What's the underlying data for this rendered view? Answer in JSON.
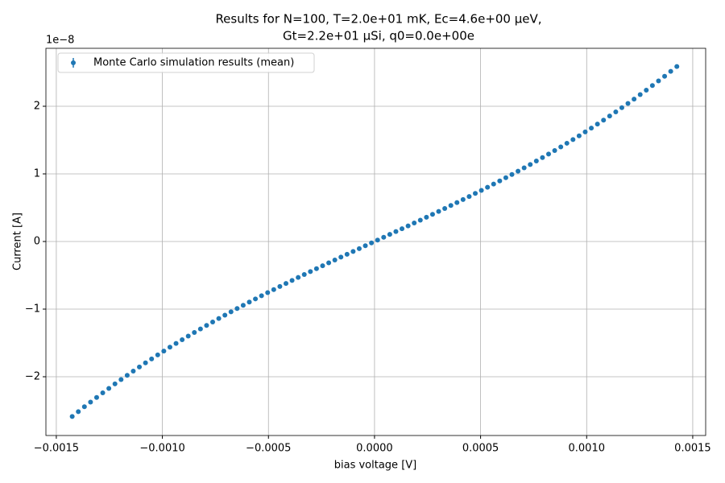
{
  "chart_data": {
    "type": "scatter",
    "title": "Results for N=100, T=2.0e+01 mK, Ec=4.6e+00 μeV,",
    "subtitle": "Gt=2.2e+01 μSi, q0=0.0e+00e",
    "x_label": "bias voltage [V]",
    "y_label": "Current [A]",
    "y_offset_label": "1e−8",
    "xlim": [
      -0.001549,
      0.001561
    ],
    "ylim": [
      -2.869,
      2.857
    ],
    "xticks": [
      {
        "value": -0.0015,
        "label": "−0.0015"
      },
      {
        "value": -0.001,
        "label": "−0.0010"
      },
      {
        "value": -0.0005,
        "label": "−0.0005"
      },
      {
        "value": 0,
        "label": "0.0000"
      },
      0.0005,
      {
        "value": 0.001,
        "label": "0.0010"
      },
      0.0015
    ],
    "yticks": [
      {
        "value": -2,
        "label": "−2"
      },
      {
        "value": -1,
        "label": "−1"
      },
      0,
      1,
      2
    ],
    "grid": true,
    "legend_loc": "upper left",
    "series": [
      {
        "name": "Monte Carlo simulation results (mean)",
        "color": "#1f77b4",
        "x": [
          -0.0014251,
          -0.0013963,
          -0.0013675,
          -0.0013387,
          -0.0013099,
          -0.0012811,
          -0.0012523,
          -0.0012235,
          -0.0011947,
          -0.0011659,
          -0.0011372,
          -0.0011084,
          -0.0010796,
          -0.0010508,
          -0.001022,
          -0.0009932,
          -0.0009644,
          -0.0009356,
          -0.0009068,
          -0.0008781,
          -0.0008493,
          -0.0008205,
          -0.0007917,
          -0.0007629,
          -0.0007341,
          -0.0007053,
          -0.0006765,
          -0.0006477,
          -0.000619,
          -0.0005902,
          -0.0005614,
          -0.0005326,
          -0.0005038,
          -0.000475,
          -0.0004462,
          -0.0004174,
          -0.0003886,
          -0.0003599,
          -0.0003311,
          -0.0003023,
          -0.0002735,
          -0.0002447,
          -0.0002159,
          -0.0001871,
          -0.0001583,
          -0.0001295,
          -0.0001008,
          -7.2e-05,
          -4.32e-05,
          -1.44e-05,
          1.44e-05,
          4.32e-05,
          7.2e-05,
          0.0001008,
          0.0001295,
          0.0001583,
          0.0001871,
          0.0002159,
          0.0002447,
          0.0002735,
          0.0003023,
          0.0003311,
          0.0003599,
          0.0003886,
          0.0004174,
          0.0004462,
          0.000475,
          0.0005038,
          0.0005326,
          0.0005614,
          0.0005902,
          0.000619,
          0.0006477,
          0.0006765,
          0.0007053,
          0.0007341,
          0.0007629,
          0.0007917,
          0.0008205,
          0.0008493,
          0.0008781,
          0.0009068,
          0.0009356,
          0.0009644,
          0.0009932,
          0.001022,
          0.0010508,
          0.0010796,
          0.0011084,
          0.0011372,
          0.0011659,
          0.0011947,
          0.0012235,
          0.0012523,
          0.0012811,
          0.0013099,
          0.0013387,
          0.0013675,
          0.0013963,
          0.0014251
        ],
        "values": [
          -2.588,
          -2.516,
          -2.444,
          -2.375,
          -2.306,
          -2.238,
          -2.172,
          -2.106,
          -2.042,
          -1.979,
          -1.917,
          -1.855,
          -1.795,
          -1.736,
          -1.677,
          -1.62,
          -1.563,
          -1.507,
          -1.453,
          -1.399,
          -1.345,
          -1.293,
          -1.241,
          -1.19,
          -1.139,
          -1.089,
          -1.04,
          -0.991,
          -0.943,
          -0.896,
          -0.849,
          -0.802,
          -0.756,
          -0.711,
          -0.665,
          -0.621,
          -0.576,
          -0.532,
          -0.488,
          -0.445,
          -0.402,
          -0.359,
          -0.316,
          -0.274,
          -0.231,
          -0.189,
          -0.147,
          -0.105,
          -0.063,
          -0.021,
          0.021,
          0.063,
          0.105,
          0.147,
          0.189,
          0.231,
          0.274,
          0.316,
          0.359,
          0.402,
          0.445,
          0.488,
          0.532,
          0.576,
          0.621,
          0.665,
          0.711,
          0.756,
          0.802,
          0.849,
          0.896,
          0.943,
          0.991,
          1.04,
          1.089,
          1.139,
          1.19,
          1.241,
          1.293,
          1.345,
          1.399,
          1.453,
          1.507,
          1.563,
          1.62,
          1.677,
          1.736,
          1.795,
          1.855,
          1.917,
          1.979,
          2.042,
          2.106,
          2.172,
          2.238,
          2.306,
          2.375,
          2.444,
          2.516,
          2.588
        ]
      }
    ]
  }
}
